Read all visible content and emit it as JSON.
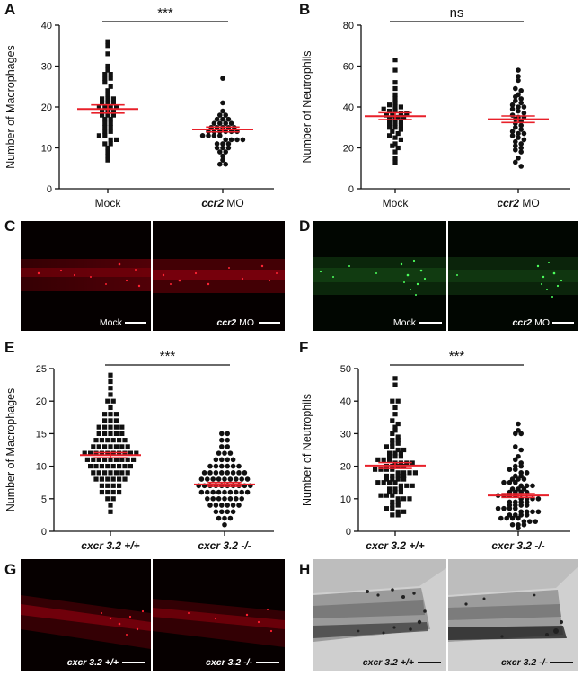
{
  "panel_letters": {
    "A": "A",
    "B": "B",
    "C": "C",
    "D": "D",
    "E": "E",
    "F": "F",
    "G": "G",
    "H": "H"
  },
  "colors": {
    "mean_line": "#e8202a",
    "points": "#111111",
    "red_fluor": "#c8141e",
    "green_fluor": "#33d94a"
  },
  "chart_data": [
    {
      "panel": "A",
      "type": "scatter",
      "ylabel": "Number of Macrophages",
      "ylim": [
        0,
        40
      ],
      "yticks": [
        0,
        10,
        20,
        30,
        40
      ],
      "categories": [
        "Mock",
        "ccr2 MO"
      ],
      "category_labels": [
        {
          "italic": "",
          "plain": "Mock"
        },
        {
          "italic": "ccr2",
          "plain": " MO"
        }
      ],
      "significance": "***",
      "markers": [
        "square",
        "circle"
      ],
      "means": [
        19.5,
        14.5
      ],
      "sem": [
        1.0,
        0.6
      ],
      "series": [
        {
          "values": [
            36,
            35,
            33,
            30,
            29,
            28,
            28,
            27,
            27,
            26,
            25,
            24,
            23,
            22,
            22,
            22,
            21,
            21,
            21,
            20,
            20,
            20,
            20,
            19,
            19,
            19,
            18,
            18,
            18,
            17,
            17,
            16,
            16,
            15,
            15,
            14,
            14,
            13,
            13,
            12,
            12,
            11,
            11,
            10,
            9,
            8,
            7
          ]
        },
        {
          "values": [
            27,
            21,
            19,
            18,
            18,
            17,
            17,
            17,
            16,
            16,
            16,
            16,
            15,
            15,
            15,
            15,
            15,
            14,
            14,
            14,
            14,
            14,
            14,
            13,
            13,
            13,
            13,
            12,
            12,
            12,
            12,
            11,
            11,
            11,
            10,
            10,
            10,
            9,
            9,
            8,
            7,
            6,
            6
          ]
        }
      ]
    },
    {
      "panel": "B",
      "type": "scatter",
      "ylabel": "Number of Neutrophils",
      "ylim": [
        0,
        80
      ],
      "yticks": [
        0,
        20,
        40,
        60,
        80
      ],
      "categories": [
        "Mock",
        "ccr2 MO"
      ],
      "category_labels": [
        {
          "italic": "",
          "plain": "Mock"
        },
        {
          "italic": "ccr2",
          "plain": " MO"
        }
      ],
      "significance": "ns",
      "markers": [
        "square",
        "circle"
      ],
      "means": [
        35.5,
        34.0
      ],
      "sem": [
        1.7,
        1.6
      ],
      "series": [
        {
          "values": [
            63,
            58,
            52,
            49,
            46,
            44,
            42,
            41,
            40,
            40,
            39,
            38,
            38,
            37,
            37,
            36,
            36,
            35,
            35,
            34,
            34,
            33,
            32,
            32,
            31,
            30,
            30,
            29,
            28,
            27,
            26,
            25,
            24,
            22,
            21,
            20,
            18,
            15,
            13
          ]
        },
        {
          "values": [
            58,
            55,
            53,
            49,
            48,
            46,
            45,
            44,
            43,
            42,
            41,
            40,
            40,
            39,
            38,
            37,
            36,
            35,
            35,
            34,
            33,
            32,
            31,
            30,
            29,
            28,
            27,
            27,
            26,
            25,
            24,
            23,
            22,
            21,
            20,
            19,
            18,
            15,
            13,
            11
          ]
        }
      ]
    },
    {
      "panel": "E",
      "type": "scatter",
      "ylabel": "Number of Macrophages",
      "ylim": [
        0,
        25
      ],
      "yticks": [
        0,
        5,
        10,
        15,
        20,
        25
      ],
      "categories": [
        "cxcr 3.2 +/+",
        "cxcr 3.2 -/-"
      ],
      "category_labels": [
        {
          "italic": "cxcr 3.2 +/+",
          "plain": ""
        },
        {
          "italic": "cxcr 3.2 -/-",
          "plain": ""
        }
      ],
      "significance": "***",
      "markers": [
        "square",
        "circle"
      ],
      "means": [
        11.7,
        7.2
      ],
      "sem": [
        0.4,
        0.3
      ],
      "series": [
        {
          "values": [
            24,
            23,
            22,
            21,
            20,
            20,
            19,
            18,
            18,
            18,
            17,
            17,
            17,
            16,
            16,
            16,
            16,
            16,
            15,
            15,
            15,
            15,
            15,
            14,
            14,
            14,
            14,
            14,
            14,
            13,
            13,
            13,
            13,
            13,
            13,
            13,
            12,
            12,
            12,
            12,
            12,
            12,
            12,
            12,
            12,
            12,
            11,
            11,
            11,
            11,
            11,
            11,
            11,
            11,
            11,
            10,
            10,
            10,
            10,
            10,
            10,
            10,
            10,
            9,
            9,
            9,
            9,
            9,
            9,
            9,
            8,
            8,
            8,
            8,
            8,
            8,
            7,
            7,
            7,
            7,
            6,
            6,
            6,
            6,
            5,
            5,
            4,
            3
          ]
        },
        {
          "values": [
            15,
            15,
            14,
            14,
            13,
            13,
            12,
            12,
            12,
            11,
            11,
            11,
            11,
            10,
            10,
            10,
            10,
            10,
            10,
            9,
            9,
            9,
            9,
            9,
            9,
            9,
            9,
            8,
            8,
            8,
            8,
            8,
            8,
            8,
            8,
            8,
            7,
            7,
            7,
            7,
            7,
            7,
            7,
            7,
            7,
            7,
            6,
            6,
            6,
            6,
            6,
            6,
            6,
            6,
            6,
            5,
            5,
            5,
            5,
            5,
            5,
            5,
            4,
            4,
            4,
            4,
            4,
            4,
            3,
            3,
            3,
            3,
            2,
            2,
            2,
            1
          ]
        }
      ]
    },
    {
      "panel": "F",
      "type": "scatter",
      "ylabel": "Number of Neutrophils",
      "ylim": [
        0,
        50
      ],
      "yticks": [
        0,
        10,
        20,
        30,
        40,
        50
      ],
      "categories": [
        "cxcr 3.2 +/+",
        "cxcr 3.2 -/-"
      ],
      "category_labels": [
        {
          "italic": "cxcr 3.2 +/+",
          "plain": ""
        },
        {
          "italic": "cxcr 3.2 -/-",
          "plain": ""
        }
      ],
      "significance": "***",
      "markers": [
        "square",
        "circle"
      ],
      "means": [
        20.2,
        11.0
      ],
      "sem": [
        0.9,
        0.6
      ],
      "series": [
        {
          "values": [
            47,
            45,
            40,
            40,
            38,
            36,
            34,
            33,
            32,
            31,
            30,
            29,
            28,
            28,
            27,
            27,
            26,
            26,
            25,
            25,
            24,
            24,
            24,
            23,
            23,
            23,
            22,
            22,
            22,
            21,
            21,
            21,
            21,
            20,
            20,
            20,
            20,
            19,
            19,
            19,
            19,
            18,
            18,
            18,
            18,
            17,
            17,
            17,
            17,
            16,
            16,
            16,
            16,
            15,
            15,
            15,
            15,
            14,
            14,
            14,
            13,
            13,
            13,
            12,
            12,
            12,
            11,
            11,
            11,
            10,
            10,
            10,
            9,
            9,
            8,
            8,
            7,
            7,
            6,
            6,
            5,
            5
          ]
        },
        {
          "values": [
            33,
            31,
            30,
            30,
            26,
            25,
            23,
            22,
            21,
            20,
            20,
            19,
            19,
            18,
            18,
            17,
            17,
            16,
            16,
            16,
            15,
            15,
            15,
            14,
            14,
            14,
            13,
            13,
            13,
            12,
            12,
            12,
            12,
            11,
            11,
            11,
            11,
            10,
            10,
            10,
            10,
            9,
            9,
            9,
            9,
            8,
            8,
            8,
            8,
            7,
            7,
            7,
            7,
            6,
            6,
            6,
            6,
            5,
            5,
            5,
            5,
            4,
            4,
            4,
            4,
            3,
            3,
            3,
            2,
            2,
            2,
            1
          ]
        }
      ]
    }
  ],
  "images": {
    "C": {
      "left": {
        "italic": "",
        "plain": "Mock"
      },
      "right": {
        "italic": "ccr2",
        "plain": " MO"
      }
    },
    "D": {
      "left": {
        "italic": "",
        "plain": "Mock"
      },
      "right": {
        "italic": "ccr2",
        "plain": " MO"
      }
    },
    "G": {
      "left": {
        "italic": "cxcr 3.2 +/+",
        "plain": ""
      },
      "right": {
        "italic": "cxcr 3.2 -/-",
        "plain": ""
      }
    },
    "H": {
      "left": {
        "italic": "cxcr 3.2 +/+",
        "plain": ""
      },
      "right": {
        "italic": "cxcr 3.2 -/-",
        "plain": ""
      }
    }
  }
}
